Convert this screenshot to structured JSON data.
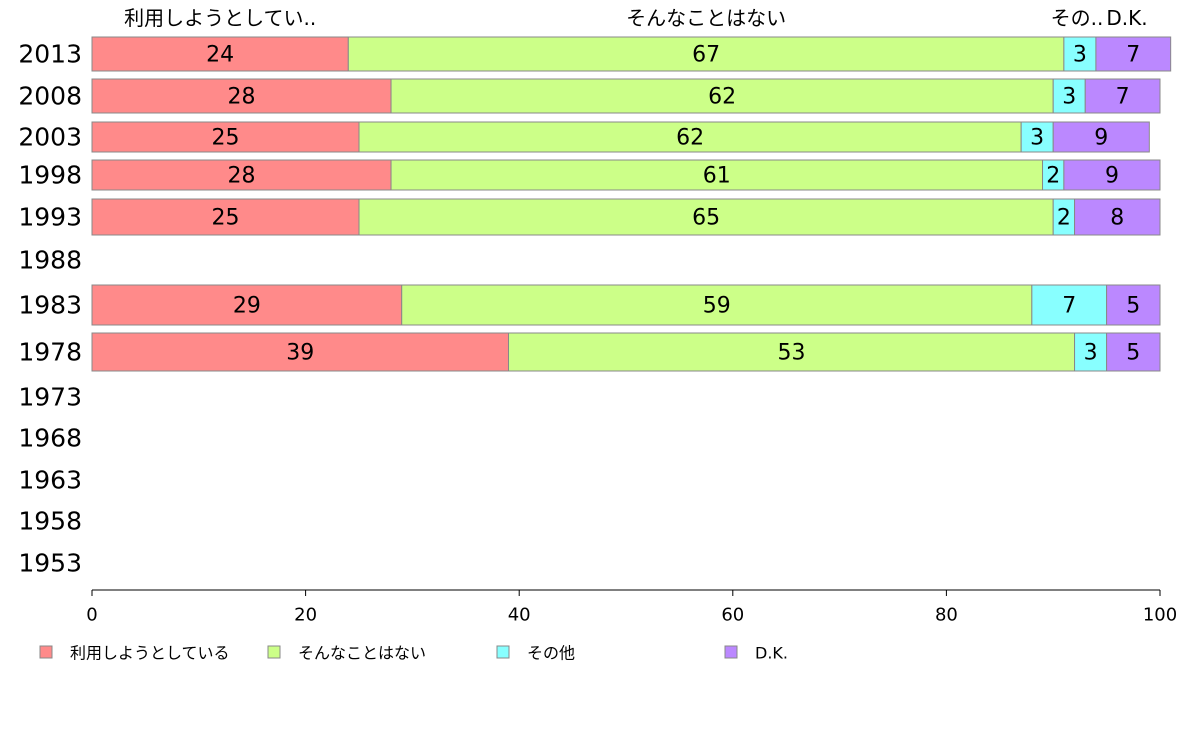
{
  "chart_data": {
    "type": "bar",
    "orientation": "horizontal",
    "stacked": true,
    "categories": [
      "2013",
      "2008",
      "2003",
      "1998",
      "1993",
      "1988",
      "1983",
      "1978",
      "1973",
      "1968",
      "1963",
      "1958",
      "1953"
    ],
    "series": [
      {
        "name": "利用しようとしている",
        "short_name": "利用しようとしてい..",
        "color": "#ff8a8a",
        "values": [
          24,
          28,
          25,
          28,
          25,
          null,
          29,
          39,
          null,
          null,
          null,
          null,
          null
        ]
      },
      {
        "name": "そんなことはない",
        "short_name": "そんなことはない",
        "color": "#ccff88",
        "values": [
          67,
          62,
          62,
          61,
          65,
          null,
          59,
          53,
          null,
          null,
          null,
          null,
          null
        ]
      },
      {
        "name": "その他",
        "short_name": "その..",
        "color": "#88ffff",
        "values": [
          3,
          3,
          3,
          2,
          2,
          null,
          7,
          3,
          null,
          null,
          null,
          null,
          null
        ]
      },
      {
        "name": "D.K.",
        "short_name": "D.K.",
        "color": "#bb88ff",
        "values": [
          7,
          7,
          9,
          9,
          8,
          null,
          5,
          5,
          null,
          null,
          null,
          null,
          null
        ]
      }
    ],
    "xlim": [
      0,
      100
    ],
    "xticks": [
      "0",
      "20",
      "40",
      "60",
      "80",
      "100"
    ],
    "legend": "bottom",
    "grid": false
  }
}
